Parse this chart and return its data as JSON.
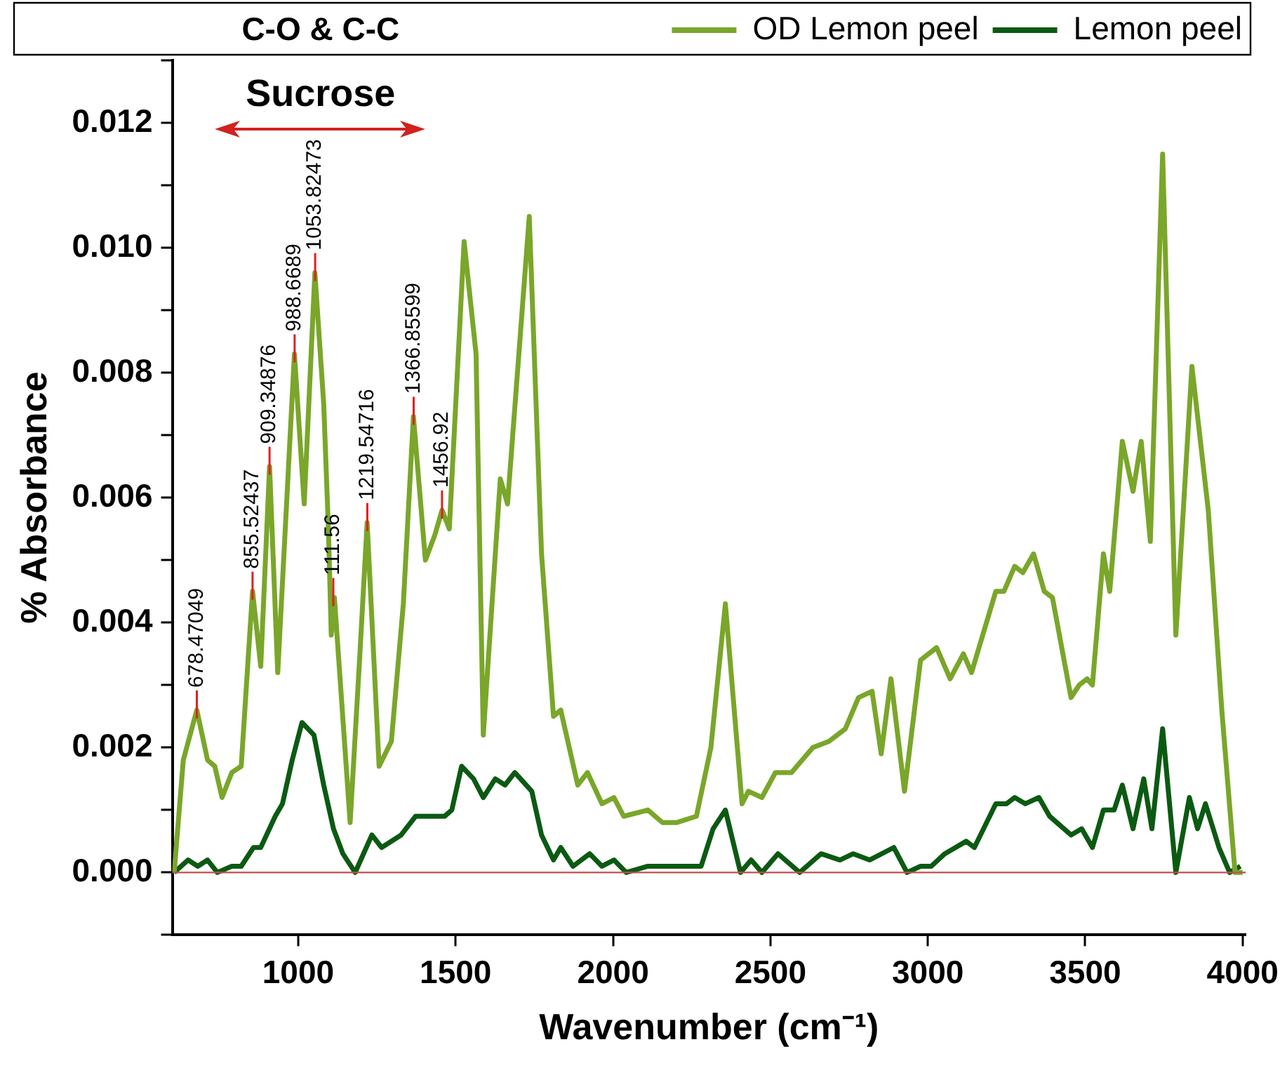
{
  "chart_data": {
    "type": "line",
    "xlabel": "Wavenumber (cm⁻¹)",
    "ylabel": "% Absorbance",
    "legend": "top right",
    "grid": false,
    "xlim": [
      600,
      4010
    ],
    "xticks": [
      1000,
      1500,
      2000,
      2500,
      3000,
      3500,
      4000
    ],
    "ylim": [
      -0.001,
      0.013
    ],
    "yticks": [
      {
        "value": -0.001,
        "label": null
      },
      {
        "value": 0,
        "label": "0.000"
      },
      {
        "value": 0.001,
        "label": null
      },
      {
        "value": 0.002,
        "label": "0.002"
      },
      {
        "value": 0.003,
        "label": null
      },
      {
        "value": 0.004,
        "label": "0.004"
      },
      {
        "value": 0.005,
        "label": null
      },
      {
        "value": 0.006,
        "label": "0.006"
      },
      {
        "value": 0.007,
        "label": null
      },
      {
        "value": 0.008,
        "label": "0.008"
      },
      {
        "value": 0.009,
        "label": null
      },
      {
        "value": 0.01,
        "label": "0.010"
      },
      {
        "value": 0.011,
        "label": null
      },
      {
        "value": 0.012,
        "label": "0.012"
      },
      {
        "value": 0.013,
        "label": null
      }
    ],
    "ref_lines": [
      {
        "axis": "y",
        "value": 0,
        "color": "#c0504d"
      }
    ],
    "series": [
      {
        "name": "OD Lemon peel",
        "color": "#7aa62a",
        "x": [
          606,
          635,
          678,
          712,
          735,
          758,
          789,
          819,
          842,
          855,
          881,
          909,
          935,
          988,
          1019,
          1053,
          1081,
          1096,
          1105,
          1115,
          1165,
          1196,
          1219,
          1257,
          1296,
          1334,
          1366,
          1404,
          1434,
          1457,
          1480,
          1527,
          1565,
          1588,
          1642,
          1665,
          1734,
          1773,
          1811,
          1834,
          1888,
          1919,
          1965,
          2003,
          2034,
          2111,
          2157,
          2203,
          2265,
          2311,
          2357,
          2410,
          2430,
          2473,
          2516,
          2567,
          2635,
          2686,
          2738,
          2780,
          2823,
          2852,
          2883,
          2926,
          2977,
          3028,
          3071,
          3113,
          3139,
          3216,
          3242,
          3276,
          3302,
          3336,
          3370,
          3396,
          3455,
          3481,
          3506,
          3523,
          3558,
          3578,
          3618,
          3652,
          3678,
          3707,
          3746,
          3788,
          3839,
          3891,
          3934,
          3976,
          4000
        ],
        "values": [
          0,
          0.0018,
          0.0026,
          0.0018,
          0.0017,
          0.0012,
          0.0016,
          0.0017,
          0.0035,
          0.0045,
          0.0033,
          0.0065,
          0.0032,
          0.0083,
          0.0059,
          0.0096,
          0.0075,
          0.0055,
          0.0038,
          0.0044,
          0.0008,
          0.0035,
          0.0056,
          0.0017,
          0.0021,
          0.0043,
          0.0073,
          0.005,
          0.0054,
          0.0058,
          0.0055,
          0.0101,
          0.0083,
          0.0022,
          0.0063,
          0.0059,
          0.0105,
          0.0051,
          0.0025,
          0.0026,
          0.0014,
          0.0016,
          0.0011,
          0.0012,
          0.0009,
          0.001,
          0.0008,
          0.0008,
          0.0009,
          0.002,
          0.0043,
          0.0011,
          0.0013,
          0.0012,
          0.0016,
          0.0016,
          0.002,
          0.0021,
          0.0023,
          0.0028,
          0.0029,
          0.0019,
          0.0031,
          0.0013,
          0.0034,
          0.0036,
          0.0031,
          0.0035,
          0.0032,
          0.0045,
          0.0045,
          0.0049,
          0.0048,
          0.0051,
          0.0045,
          0.0044,
          0.0028,
          0.003,
          0.0031,
          0.003,
          0.0051,
          0.0045,
          0.0069,
          0.0061,
          0.0069,
          0.0053,
          0.0115,
          0.0038,
          0.0081,
          0.0058,
          0.0026,
          0,
          0
        ]
      },
      {
        "name": "Lemon peel",
        "color": "#0b5a12",
        "x": [
          606,
          650,
          681,
          712,
          743,
          789,
          819,
          858,
          881,
          927,
          950,
          981,
          1012,
          1050,
          1081,
          1112,
          1142,
          1181,
          1234,
          1265,
          1327,
          1373,
          1465,
          1488,
          1519,
          1557,
          1588,
          1626,
          1657,
          1688,
          1742,
          1773,
          1811,
          1834,
          1873,
          1926,
          1965,
          2003,
          2042,
          2111,
          2172,
          2234,
          2280,
          2318,
          2357,
          2405,
          2439,
          2473,
          2524,
          2593,
          2661,
          2721,
          2763,
          2815,
          2892,
          2934,
          2977,
          3011,
          3054,
          3122,
          3148,
          3216,
          3250,
          3276,
          3310,
          3353,
          3387,
          3455,
          3489,
          3523,
          3558,
          3592,
          3618,
          3652,
          3686,
          3712,
          3746,
          3788,
          3831,
          3857,
          3882,
          3925,
          3959,
          3993
        ],
        "values": [
          0,
          0.0002,
          0.0001,
          0.0002,
          0,
          0.0001,
          0.0001,
          0.0004,
          0.0004,
          0.0009,
          0.0011,
          0.0018,
          0.0024,
          0.0022,
          0.0014,
          0.0007,
          0.0003,
          0,
          0.0006,
          0.0004,
          0.0006,
          0.0009,
          0.0009,
          0.001,
          0.0017,
          0.0015,
          0.0012,
          0.0015,
          0.0014,
          0.0016,
          0.0013,
          0.0006,
          0.0002,
          0.0004,
          0.0001,
          0.0003,
          0.0001,
          0.0002,
          0,
          0.0001,
          0.0001,
          0.0001,
          0.0001,
          0.0007,
          0.001,
          0,
          0.0002,
          0,
          0.0003,
          0,
          0.0003,
          0.0002,
          0.0003,
          0.0002,
          0.0004,
          0,
          0.0001,
          0.0001,
          0.0003,
          0.0005,
          0.0004,
          0.0011,
          0.0011,
          0.0012,
          0.0011,
          0.0012,
          0.0009,
          0.0006,
          0.0007,
          0.0004,
          0.001,
          0.001,
          0.0014,
          0.0007,
          0.0015,
          0.0007,
          0.0023,
          0,
          0.0012,
          0.0007,
          0.0011,
          0.0004,
          0,
          0.0001
        ]
      }
    ],
    "annotations": [
      "C-O & C-C",
      "Sucrose",
      {
        "text": "678.47049",
        "x": 678,
        "y": 0.0026
      },
      {
        "text": "855.52437",
        "x": 855,
        "y": 0.0045
      },
      {
        "text": "909.34876",
        "x": 909,
        "y": 0.0065
      },
      {
        "text": "988.6689",
        "x": 988.6689,
        "y": 0.0083
      },
      {
        "text": "1053.82473",
        "x": 1053.82473,
        "y": 0.0096
      },
      {
        "text": "111.56",
        "x": 1111.56,
        "y": 0.0044
      },
      {
        "text": "1219.54716",
        "x": 1219.54716,
        "y": 0.0056
      },
      {
        "text": "1366.85599",
        "x": 1366.85599,
        "y": 0.0073
      },
      {
        "text": "1456.92",
        "x": 1456.92,
        "y": 0.0058
      }
    ]
  }
}
